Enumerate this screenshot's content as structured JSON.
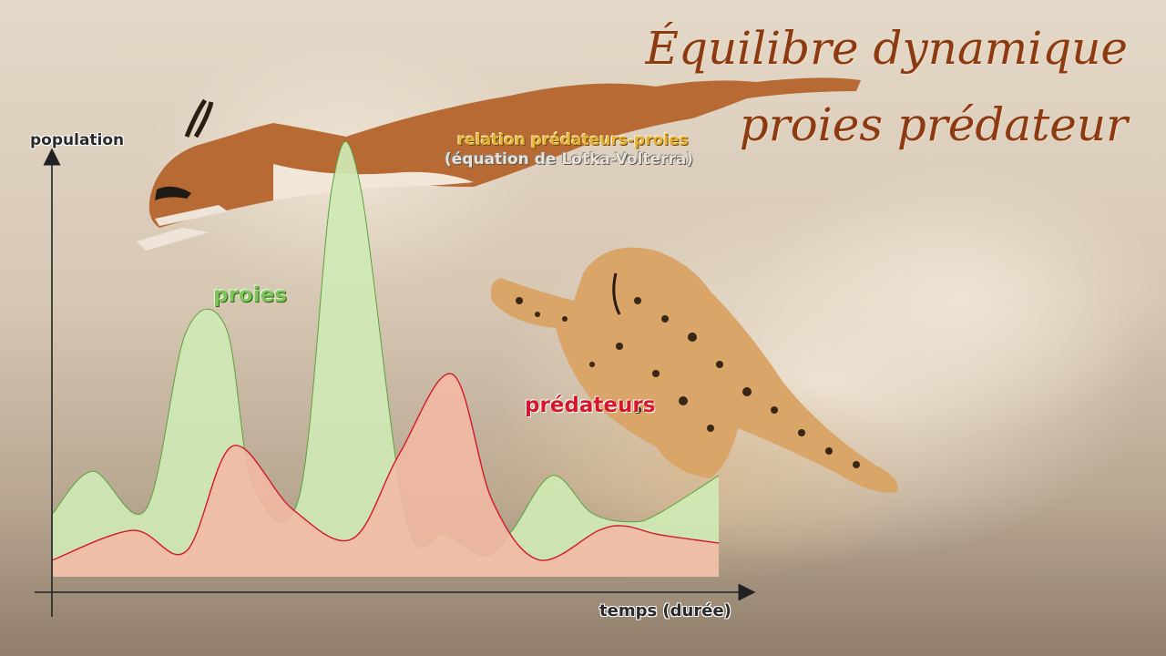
{
  "title": {
    "line1": "Équilibre dynamique",
    "line2": "proies prédateur"
  },
  "subtitle": {
    "line1": "relation prédateurs-proies",
    "line2": "(équation de Lotka-Volterra)"
  },
  "colors": {
    "title": "#8b3a12",
    "prey_fill": "#cfe9b5",
    "prey_line": "#5aa23a",
    "predator_fill": "#f2b9a4",
    "predator_line": "#d4182a",
    "overlap_fill": "#f4a7a7",
    "axis": "#222222",
    "background": "#cbbfae"
  },
  "chart_data": {
    "type": "area",
    "xlabel": "temps (durée)",
    "ylabel": "population",
    "xlim": [
      0,
      100
    ],
    "ylim": [
      0,
      100
    ],
    "grid": false,
    "axis_ticks": false,
    "series_labels": {
      "prey": "proies",
      "predator": "prédateurs"
    },
    "series": [
      {
        "name": "proies",
        "color": "#5aa23a",
        "x": [
          0,
          6,
          14,
          20,
          26,
          30,
          37,
          42,
          46,
          53,
          59,
          65,
          69,
          75,
          81,
          87,
          91,
          100
        ],
        "y": [
          15,
          25,
          16,
          58,
          59,
          22,
          19,
          93,
          94,
          14,
          10,
          5,
          11,
          24,
          15,
          13,
          15,
          24
        ]
      },
      {
        "name": "prédateurs",
        "color": "#d4182a",
        "x": [
          0,
          12,
          20,
          27,
          36,
          45,
          52,
          60,
          66,
          73,
          82,
          86,
          91,
          100
        ],
        "y": [
          4,
          11,
          6,
          31,
          16,
          9,
          29,
          48,
          18,
          4,
          11,
          12,
          10,
          8
        ]
      }
    ]
  }
}
